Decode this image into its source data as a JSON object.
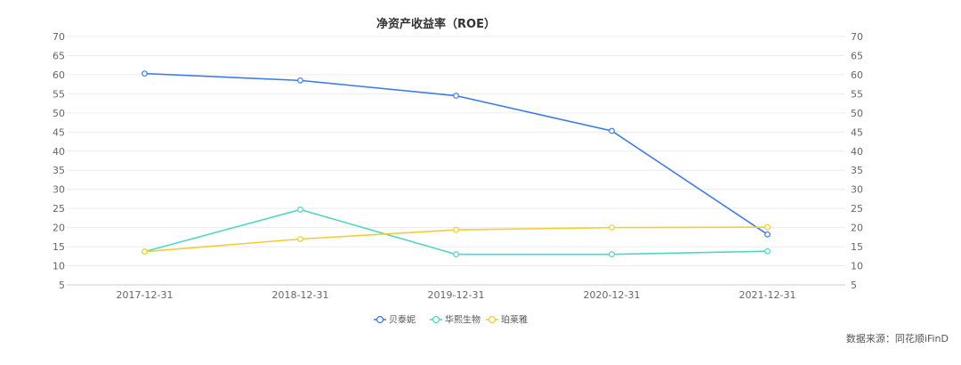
{
  "chart_data": {
    "type": "line",
    "title": "净资产收益率（ROE）",
    "categories": [
      "2017-12-31",
      "2018-12-31",
      "2019-12-31",
      "2020-12-31",
      "2021-12-31"
    ],
    "ylim": [
      5,
      70
    ],
    "yticks": [
      5,
      10,
      15,
      20,
      25,
      30,
      35,
      40,
      45,
      50,
      55,
      60,
      65,
      70
    ],
    "grid": true,
    "legend": "bottom-center",
    "series": [
      {
        "name": "贝泰妮",
        "color": "#3a7bea",
        "values": [
          60.3,
          58.5,
          54.5,
          45.3,
          18.2
        ]
      },
      {
        "name": "华熙生物",
        "color": "#4fd6c4",
        "values": [
          13.7,
          24.7,
          13.0,
          13.0,
          13.8
        ]
      },
      {
        "name": "珀莱雅",
        "color": "#f5cc2f",
        "values": [
          13.7,
          17.0,
          19.4,
          20.0,
          20.1
        ]
      }
    ]
  },
  "source_text": "数据来源：同花顺iFinD"
}
